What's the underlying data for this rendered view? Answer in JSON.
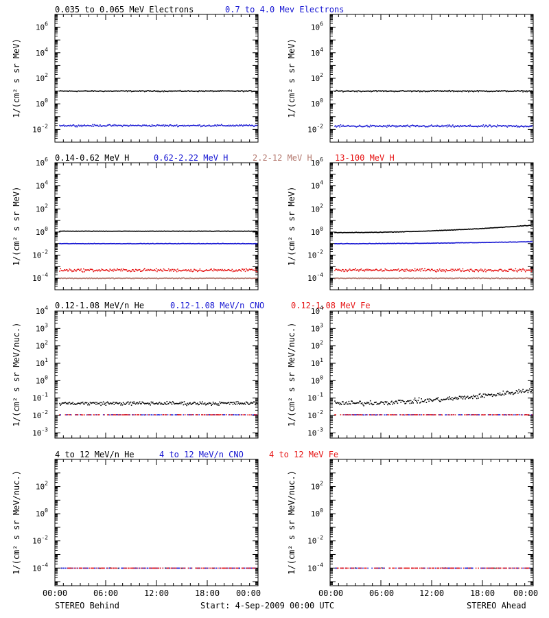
{
  "colors": {
    "black": "#000000",
    "blue": "#1414d2",
    "salmon": "#b4786e",
    "red": "#e61414"
  },
  "panel_titles": {
    "electrons": [
      {
        "text": "0.035 to 0.065 MeV Electrons",
        "color": "#000000"
      },
      {
        "text": "0.7 to 4.0 Mev Electrons",
        "color": "#1414d2"
      }
    ],
    "protons": [
      {
        "text": "0.14-0.62 MeV H",
        "color": "#000000"
      },
      {
        "text": "0.62-2.22 MeV H",
        "color": "#1414d2"
      },
      {
        "text": "2.2-12 MeV H",
        "color": "#b4786e"
      },
      {
        "text": "13-100 MeV H",
        "color": "#e61414"
      }
    ],
    "heavy_low": [
      {
        "text": "0.12-1.08 MeV/n He",
        "color": "#000000"
      },
      {
        "text": "0.12-1.08 MeV/n CNO",
        "color": "#1414d2"
      },
      {
        "text": "0.12-1.08 MeV Fe",
        "color": "#e61414"
      }
    ],
    "heavy_high": [
      {
        "text": "4 to 12 MeV/n He",
        "color": "#000000"
      },
      {
        "text": "4 to 12 MeV/n CNO",
        "color": "#1414d2"
      },
      {
        "text": "4 to 12 MeV Fe",
        "color": "#e61414"
      }
    ]
  },
  "ylabels": {
    "per_mev": "1/(cm² s sr MeV)",
    "per_nuc": "1/(cm² s sr MeV/nuc.)"
  },
  "x_ticks": [
    "00:00",
    "06:00",
    "12:00",
    "18:00",
    "00:00"
  ],
  "footer": {
    "left": "STEREO Behind",
    "center": "Start:  4-Sep-2009 00:00 UTC",
    "right": "STEREO Ahead"
  },
  "chart_data": [
    {
      "type": "scatter",
      "row": 1,
      "spacecraft": "STEREO Behind",
      "yscale": "log",
      "ylim": [
        0.001,
        10000000
      ],
      "y_tick_exponents": [
        -2,
        0,
        2,
        4,
        6
      ],
      "xlim_hours": [
        0,
        24
      ],
      "series": [
        {
          "name": "0.035 to 0.065 MeV Electrons",
          "color": "#000000",
          "level": 10,
          "scatter_decades": 0.06
        },
        {
          "name": "0.7 to 4.0 Mev Electrons",
          "color": "#1414d2",
          "level": 0.02,
          "scatter_decades": 0.1
        }
      ]
    },
    {
      "type": "scatter",
      "row": 1,
      "spacecraft": "STEREO Ahead",
      "yscale": "log",
      "ylim": [
        0.001,
        10000000
      ],
      "y_tick_exponents": [
        -2,
        0,
        2,
        4,
        6
      ],
      "xlim_hours": [
        0,
        24
      ],
      "series": [
        {
          "name": "0.035 to 0.065 MeV Electrons",
          "color": "#000000",
          "level": 10,
          "scatter_decades": 0.07
        },
        {
          "name": "0.7 to 4.0 Mev Electrons",
          "color": "#1414d2",
          "level": 0.018,
          "scatter_decades": 0.12
        }
      ]
    },
    {
      "type": "scatter",
      "row": 2,
      "spacecraft": "STEREO Behind",
      "yscale": "log",
      "ylim": [
        1e-05,
        1000000
      ],
      "y_tick_exponents": [
        -4,
        -2,
        0,
        2,
        4,
        6
      ],
      "xlim_hours": [
        0,
        24
      ],
      "series": [
        {
          "name": "0.14-0.62 MeV H",
          "color": "#000000",
          "level": 1.2,
          "scatter_decades": 0.02
        },
        {
          "name": "0.62-2.22 MeV H",
          "color": "#1414d2",
          "level": 0.1,
          "scatter_decades": 0.03
        },
        {
          "name": "2.2-12 MeV H",
          "color": "#b4786e",
          "level": 0.0001,
          "scatter_decades": 0.05
        },
        {
          "name": "13-100 MeV H",
          "color": "#e61414",
          "level": 0.0005,
          "scatter_decades": 0.18
        }
      ]
    },
    {
      "type": "scatter",
      "row": 2,
      "spacecraft": "STEREO Ahead",
      "yscale": "log",
      "ylim": [
        1e-05,
        1000000
      ],
      "y_tick_exponents": [
        -4,
        -2,
        0,
        2,
        4,
        6
      ],
      "xlim_hours": [
        0,
        24
      ],
      "series": [
        {
          "name": "0.14-0.62 MeV H",
          "color": "#000000",
          "level_start": 0.9,
          "level_end": 4,
          "scatter_decades": 0.03
        },
        {
          "name": "0.62-2.22 MeV H",
          "color": "#1414d2",
          "level_start": 0.1,
          "level_end": 0.15,
          "scatter_decades": 0.03
        },
        {
          "name": "2.2-12 MeV H",
          "color": "#b4786e",
          "level": 0.0001,
          "scatter_decades": 0.05
        },
        {
          "name": "13-100 MeV H",
          "color": "#e61414",
          "level": 0.0005,
          "scatter_decades": 0.18
        }
      ]
    },
    {
      "type": "scatter",
      "row": 3,
      "spacecraft": "STEREO Behind",
      "yscale": "log",
      "ylim": [
        0.0005,
        10000
      ],
      "y_tick_exponents": [
        -3,
        -2,
        -1,
        0,
        1,
        2,
        3,
        4
      ],
      "xlim_hours": [
        0,
        24
      ],
      "series": [
        {
          "name": "0.12-1.08 MeV/n He",
          "color": "#000000",
          "level": 0.05,
          "scatter_decades": 0.15
        },
        {
          "name": "0.12-1.08 MeV/n CNO",
          "color": "#1414d2",
          "level": 0.011,
          "scatter_decades": 0.01
        },
        {
          "name": "0.12-1.08 MeV Fe",
          "color": "#e61414",
          "level": 0.011,
          "scatter_decades": 0.01
        }
      ]
    },
    {
      "type": "scatter",
      "row": 3,
      "spacecraft": "STEREO Ahead",
      "yscale": "log",
      "ylim": [
        0.0005,
        10000
      ],
      "y_tick_exponents": [
        -3,
        -2,
        -1,
        0,
        1,
        2,
        3,
        4
      ],
      "xlim_hours": [
        0,
        24
      ],
      "series": [
        {
          "name": "0.12-1.08 MeV/n He",
          "color": "#000000",
          "level_start": 0.05,
          "level_end": 0.3,
          "scatter_decades": 0.2
        },
        {
          "name": "0.12-1.08 MeV/n CNO",
          "color": "#1414d2",
          "level": 0.011,
          "scatter_decades": 0.01
        },
        {
          "name": "0.12-1.08 MeV Fe",
          "color": "#e61414",
          "level": 0.011,
          "scatter_decades": 0.01
        }
      ]
    },
    {
      "type": "scatter",
      "row": 4,
      "spacecraft": "STEREO Behind",
      "yscale": "log",
      "ylim": [
        5e-06,
        10000
      ],
      "y_tick_exponents": [
        -4,
        -2,
        0,
        2
      ],
      "xlim_hours": [
        0,
        24
      ],
      "series": [
        {
          "name": "4 to 12 MeV/n He",
          "color": "#000000",
          "level": 0.0001,
          "scatter_decades": 0.02
        },
        {
          "name": "4 to 12 MeV/n CNO",
          "color": "#1414d2",
          "level": 0.0001,
          "scatter_decades": 0.0
        },
        {
          "name": "4 to 12 MeV Fe",
          "color": "#e61414",
          "level": 0.0001,
          "scatter_decades": 0.0
        }
      ]
    },
    {
      "type": "scatter",
      "row": 4,
      "spacecraft": "STEREO Ahead",
      "yscale": "log",
      "ylim": [
        5e-06,
        10000
      ],
      "y_tick_exponents": [
        -4,
        -2,
        0,
        2
      ],
      "xlim_hours": [
        0,
        24
      ],
      "series": [
        {
          "name": "4 to 12 MeV/n He",
          "color": "#000000",
          "level": 0.0001,
          "scatter_decades": 0.02
        },
        {
          "name": "4 to 12 MeV/n CNO",
          "color": "#1414d2",
          "level": 0.0001,
          "scatter_decades": 0.0
        },
        {
          "name": "4 to 12 MeV Fe",
          "color": "#e61414",
          "level": 0.0001,
          "scatter_decades": 0.0
        }
      ]
    }
  ]
}
